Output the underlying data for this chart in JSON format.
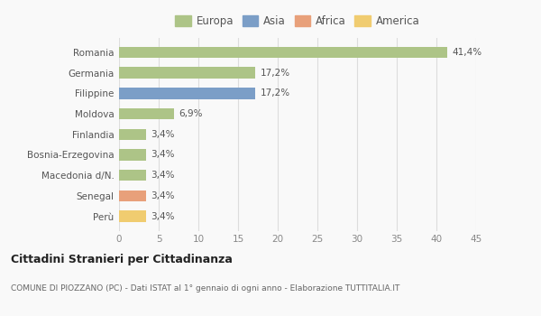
{
  "countries": [
    "Romania",
    "Germania",
    "Filippine",
    "Moldova",
    "Finlandia",
    "Bosnia-Erzegovina",
    "Macedonia d/N.",
    "Senegal",
    "Perù"
  ],
  "values": [
    41.4,
    17.2,
    17.2,
    6.9,
    3.4,
    3.4,
    3.4,
    3.4,
    3.4
  ],
  "labels": [
    "41,4%",
    "17,2%",
    "17,2%",
    "6,9%",
    "3,4%",
    "3,4%",
    "3,4%",
    "3,4%",
    "3,4%"
  ],
  "colors": [
    "#adc487",
    "#adc487",
    "#7b9ec7",
    "#adc487",
    "#adc487",
    "#adc487",
    "#adc487",
    "#e8a07a",
    "#f0cc70"
  ],
  "legend_labels": [
    "Europa",
    "Asia",
    "Africa",
    "America"
  ],
  "legend_colors": [
    "#adc487",
    "#7b9ec7",
    "#e8a07a",
    "#f0cc70"
  ],
  "xlim": [
    0,
    45
  ],
  "xticks": [
    0,
    5,
    10,
    15,
    20,
    25,
    30,
    35,
    40,
    45
  ],
  "title": "Cittadini Stranieri per Cittadinanza",
  "subtitle": "COMUNE DI PIOZZANO (PC) - Dati ISTAT al 1° gennaio di ogni anno - Elaborazione TUTTITALIA.IT",
  "background_color": "#f9f9f9",
  "grid_color": "#dddddd",
  "bar_height": 0.55
}
